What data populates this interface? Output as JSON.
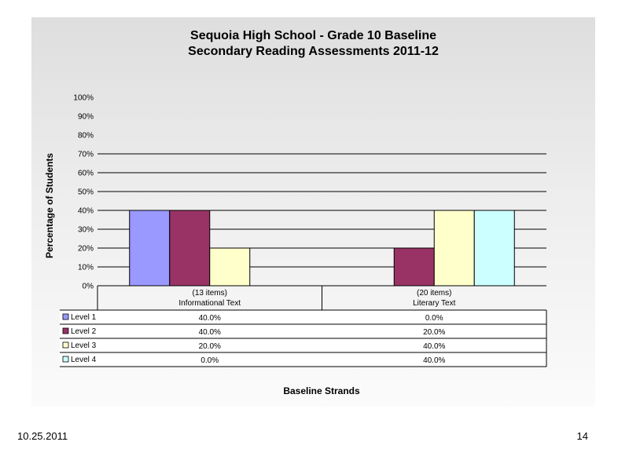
{
  "chart_data": {
    "type": "bar",
    "title": [
      "Sequoia High School - Grade 10 Baseline",
      "Secondary Reading Assessments 2011-12"
    ],
    "ylabel": "Percentage of Students",
    "xlabel": "Baseline Strands",
    "ylim": [
      0,
      100
    ],
    "yticks": [
      "0%",
      "10%",
      "20%",
      "30%",
      "40%",
      "50%",
      "60%",
      "70%",
      "80%",
      "90%",
      "100%"
    ],
    "categories": [
      {
        "line1": "(13 items)",
        "line2": "Informational Text"
      },
      {
        "line1": "(20 items)",
        "line2": "Literary Text"
      }
    ],
    "series": [
      {
        "name": "Level 1",
        "color": "#9999ff",
        "values": [
          40,
          0
        ],
        "labels": [
          "40.0%",
          "0.0%"
        ]
      },
      {
        "name": "Level 2",
        "color": "#993366",
        "values": [
          40,
          20
        ],
        "labels": [
          "40.0%",
          "20.0%"
        ]
      },
      {
        "name": "Level 3",
        "color": "#ffffcc",
        "values": [
          20,
          40
        ],
        "labels": [
          "20.0%",
          "40.0%"
        ]
      },
      {
        "name": "Level 4",
        "color": "#ccffff",
        "values": [
          0,
          40
        ],
        "labels": [
          "0.0%",
          "40.0%"
        ]
      }
    ],
    "grid": true,
    "legend": "data-table"
  },
  "footer": {
    "date": "10.25.2011",
    "page": "14"
  }
}
